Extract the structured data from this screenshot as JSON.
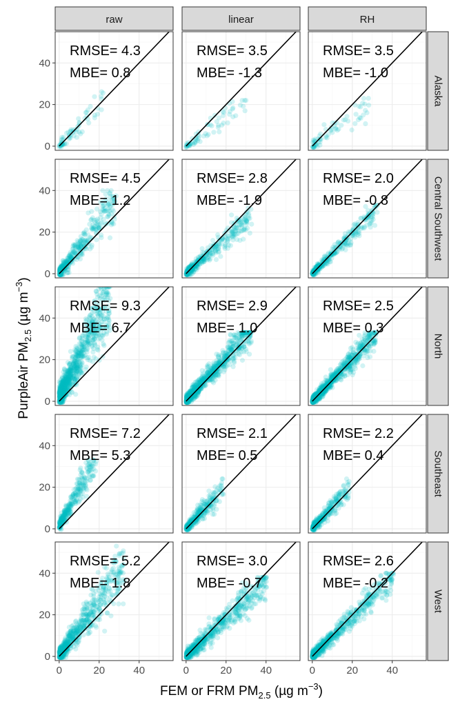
{
  "chart_data": {
    "type": "scatter",
    "columns": [
      "raw",
      "linear",
      "RH"
    ],
    "rows": [
      "Alaska",
      "Central Southwest",
      "North",
      "Southeast",
      "West"
    ],
    "xlabel": {
      "text": "FEM or FRM PM",
      "sub": "2.5",
      "unit_open": " (µg m",
      "sup": "−3",
      "unit_close": ")"
    },
    "ylabel": {
      "text": "PurpleAir PM",
      "sub": "2.5",
      "unit_open": " (µg m",
      "sup": "−3",
      "unit_close": ")"
    },
    "xlim": [
      -2,
      57
    ],
    "ylim": [
      -2,
      55
    ],
    "xticks": [
      0,
      20,
      40
    ],
    "yticks": [
      0,
      20,
      40
    ],
    "point_color": "#00bfc4",
    "reference_line": "1:1",
    "grid": true,
    "panels": [
      {
        "row": "Alaska",
        "column": "raw",
        "rmse_label": "RMSE= 4.3",
        "mbe_label": "MBE= 0.8",
        "rmse": 4.3,
        "mbe": 0.8,
        "x_max": 22,
        "y_max": 34,
        "slope": 1.0,
        "spread": 3.5,
        "density": 70
      },
      {
        "row": "Alaska",
        "column": "linear",
        "rmse_label": "RMSE= 3.5",
        "mbe_label": "MBE= -1.3",
        "rmse": 3.5,
        "mbe": -1.3,
        "x_max": 30,
        "y_max": 22,
        "slope": 0.7,
        "spread": 3.0,
        "density": 70
      },
      {
        "row": "Alaska",
        "column": "RH",
        "rmse_label": "RMSE= 3.5",
        "mbe_label": "MBE= -1.0",
        "rmse": 3.5,
        "mbe": -1.0,
        "x_max": 30,
        "y_max": 23,
        "slope": 0.7,
        "spread": 3.0,
        "density": 70
      },
      {
        "row": "Central Southwest",
        "column": "raw",
        "rmse_label": "RMSE= 4.5",
        "mbe_label": "MBE= 1.2",
        "rmse": 4.5,
        "mbe": 1.2,
        "x_max": 28,
        "y_max": 40,
        "slope": 1.25,
        "spread": 4.0,
        "density": 380
      },
      {
        "row": "Central Southwest",
        "column": "linear",
        "rmse_label": "RMSE= 2.8",
        "mbe_label": "MBE= -1.9",
        "rmse": 2.8,
        "mbe": -1.9,
        "x_max": 32,
        "y_max": 32,
        "slope": 0.85,
        "spread": 2.6,
        "density": 380
      },
      {
        "row": "Central Southwest",
        "column": "RH",
        "rmse_label": "RMSE= 2.0",
        "mbe_label": "MBE= -0.8",
        "rmse": 2.0,
        "mbe": -0.8,
        "x_max": 32,
        "y_max": 34,
        "slope": 0.95,
        "spread": 2.0,
        "density": 380
      },
      {
        "row": "North",
        "column": "raw",
        "rmse_label": "RMSE= 9.3",
        "mbe_label": "MBE= 6.7",
        "rmse": 9.3,
        "mbe": 6.7,
        "x_max": 25,
        "y_max": 55,
        "slope": 1.9,
        "spread": 7.0,
        "density": 900
      },
      {
        "row": "North",
        "column": "linear",
        "rmse_label": "RMSE= 2.9",
        "mbe_label": "MBE= 1.0",
        "rmse": 2.9,
        "mbe": 1.0,
        "x_max": 32,
        "y_max": 33,
        "slope": 1.05,
        "spread": 3.0,
        "density": 900
      },
      {
        "row": "North",
        "column": "RH",
        "rmse_label": "RMSE= 2.5",
        "mbe_label": "MBE= 0.3",
        "rmse": 2.5,
        "mbe": 0.3,
        "x_max": 32,
        "y_max": 33,
        "slope": 1.0,
        "spread": 2.6,
        "density": 900
      },
      {
        "row": "Southeast",
        "column": "raw",
        "rmse_label": "RMSE= 7.2",
        "mbe_label": "MBE= 5.3",
        "rmse": 7.2,
        "mbe": 5.3,
        "x_max": 18,
        "y_max": 33,
        "slope": 1.75,
        "spread": 3.5,
        "density": 320
      },
      {
        "row": "Southeast",
        "column": "linear",
        "rmse_label": "RMSE= 2.1",
        "mbe_label": "MBE= 0.5",
        "rmse": 2.1,
        "mbe": 0.5,
        "x_max": 18,
        "y_max": 24,
        "slope": 1.05,
        "spread": 2.4,
        "density": 320
      },
      {
        "row": "Southeast",
        "column": "RH",
        "rmse_label": "RMSE= 2.2",
        "mbe_label": "MBE= 0.4",
        "rmse": 2.2,
        "mbe": 0.4,
        "x_max": 18,
        "y_max": 24,
        "slope": 1.05,
        "spread": 2.4,
        "density": 320
      },
      {
        "row": "West",
        "column": "raw",
        "rmse_label": "RMSE= 5.2",
        "mbe_label": "MBE= 1.8",
        "rmse": 5.2,
        "mbe": 1.8,
        "x_max": 32,
        "y_max": 53,
        "slope": 1.3,
        "spread": 5.0,
        "density": 700
      },
      {
        "row": "West",
        "column": "linear",
        "rmse_label": "RMSE= 3.0",
        "mbe_label": "MBE= -0.7",
        "rmse": 3.0,
        "mbe": -0.7,
        "x_max": 40,
        "y_max": 38,
        "slope": 0.9,
        "spread": 3.4,
        "density": 700
      },
      {
        "row": "West",
        "column": "RH",
        "rmse_label": "RMSE= 2.6",
        "mbe_label": "MBE= -0.2",
        "rmse": 2.6,
        "mbe": -0.2,
        "x_max": 40,
        "y_max": 40,
        "slope": 0.95,
        "spread": 3.0,
        "density": 700
      }
    ]
  }
}
